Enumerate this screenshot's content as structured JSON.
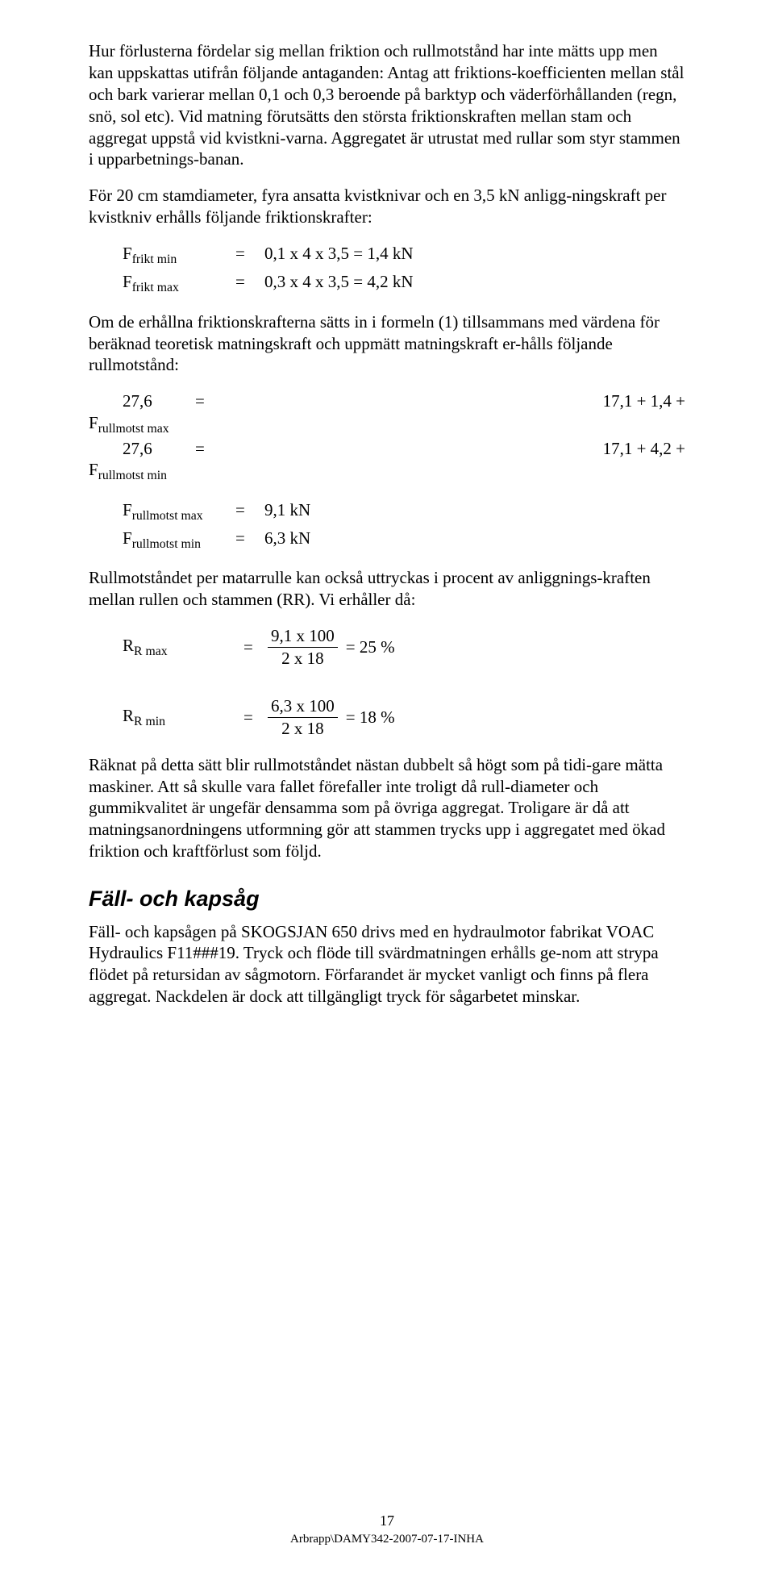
{
  "para1": "Hur förlusterna fördelar sig mellan friktion och rullmotstånd har inte mätts upp men kan uppskattas utifrån följande antaganden: Antag att friktions-koefficienten mellan stål och bark varierar mellan 0,1 och 0,3 beroende på barktyp och väderförhållanden (regn, snö, sol etc). Vid matning förutsätts den största friktionskraften mellan stam och aggregat uppstå vid kvistkni-varna. Aggregatet är utrustat med rullar som styr stammen i upparbetnings-banan.",
  "para2": "För 20 cm stamdiameter, fyra ansatta kvistknivar och en 3,5 kN anligg-ningskraft per kvistkniv erhålls följande friktionskrafter:",
  "eq1": {
    "lhs_sym": "F",
    "lhs_sub": "frikt min",
    "eq": "=",
    "rhs": "0,1 x 4 x 3,5 = 1,4 kN"
  },
  "eq2": {
    "lhs_sym": "F",
    "lhs_sub": "frikt max",
    "eq": "=",
    "rhs": "0,3 x 4 x 3,5 = 4,2 kN"
  },
  "para3": "Om de erhållna friktionskrafterna sätts in i formeln (1) tillsammans med värdena för beräknad teoretisk matningskraft och uppmätt matningskraft er-hålls följande rullmotstånd:",
  "wide1": {
    "a": "27,6",
    "b": "=",
    "c": "17,1 + 1,4 +"
  },
  "wide1_label": {
    "sym": "F",
    "sub": "rullmotst max"
  },
  "wide2": {
    "a": "27,6",
    "b": "=",
    "c": "17,1 + 4,2 +"
  },
  "wide2_label": {
    "sym": "F",
    "sub": "rullmotst min"
  },
  "res1": {
    "sym": "F",
    "sub": "rullmotst max",
    "eq": "=",
    "val": "9,1 kN"
  },
  "res2": {
    "sym": "F",
    "sub": "rullmotst min",
    "eq": "=",
    "val": "6,3 kN"
  },
  "para4": "Rullmotståndet per matarrulle kan också uttryckas i procent av anliggnings-kraften mellan rullen och stammen (RR). Vi erhåller då:",
  "rr1": {
    "sym": "R",
    "sub": "R max",
    "eq": "=",
    "num": "9,1 x 100",
    "den": "2 x 18",
    "res": "= 25 %"
  },
  "rr2": {
    "sym": "R",
    "sub": "R min",
    "eq": "=",
    "num": "6,3 x 100",
    "den": "2 x 18",
    "res": "= 18 %"
  },
  "para5": "Räknat på detta sätt blir rullmotståndet nästan dubbelt så högt som på tidi-gare mätta maskiner. Att så skulle vara fallet förefaller inte troligt då rull-diameter och gummikvalitet är ungefär densamma som på övriga aggregat. Troligare är då att matningsanordningens utformning gör att stammen trycks upp i aggregatet med ökad friktion och kraftförlust som följd.",
  "section_title": "Fäll- och kapsåg",
  "para6": "Fäll- och kapsågen på SKOGSJAN 650 drivs med en hydraulmotor fabrikat VOAC Hydraulics F11###19. Tryck och flöde till svärdmatningen erhålls ge-nom att strypa flödet på retursidan av sågmotorn. Förfarandet är mycket vanligt och finns på flera aggregat. Nackdelen är dock att tillgängligt tryck för sågarbetet minskar.",
  "footer_page": "17",
  "footer_path": "Arbrapp\\DAMY342-2007-07-17-INHA"
}
